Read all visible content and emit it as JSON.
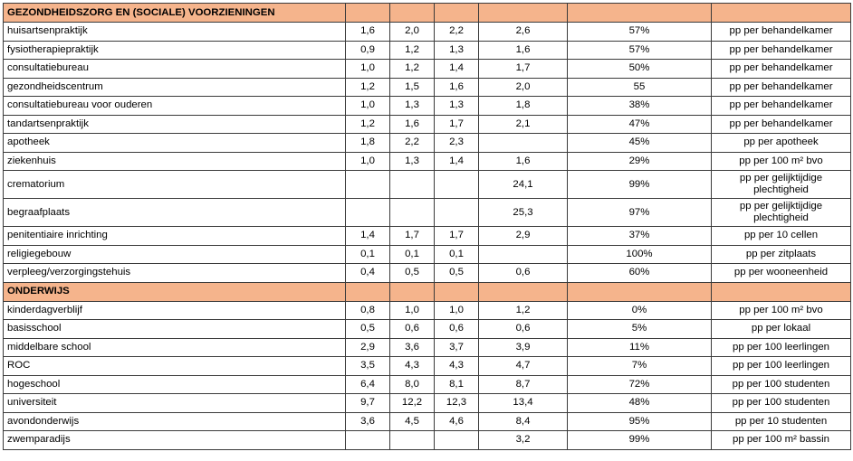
{
  "sections": [
    {
      "title": "GEZONDHEIDSZORG EN (SOCIALE) VOORZIENINGEN",
      "rows": [
        {
          "name": "huisartsenpraktijk",
          "v": [
            "1,6",
            "2,0",
            "2,2",
            "2,6"
          ],
          "pct": "57%",
          "unit": "pp per behandelkamer"
        },
        {
          "name": "fysiotherapiepraktijk",
          "v": [
            "0,9",
            "1,2",
            "1,3",
            "1,6"
          ],
          "pct": "57%",
          "unit": "pp per behandelkamer"
        },
        {
          "name": "consultatiebureau",
          "v": [
            "1,0",
            "1,2",
            "1,4",
            "1,7"
          ],
          "pct": "50%",
          "unit": "pp per behandelkamer"
        },
        {
          "name": "gezondheidscentrum",
          "v": [
            "1,2",
            "1,5",
            "1,6",
            "2,0"
          ],
          "pct": "55",
          "unit": "pp per behandelkamer"
        },
        {
          "name": "consultatiebureau voor ouderen",
          "v": [
            "1,0",
            "1,3",
            "1,3",
            "1,8"
          ],
          "pct": "38%",
          "unit": "pp per behandelkamer"
        },
        {
          "name": "tandartsenpraktijk",
          "v": [
            "1,2",
            "1,6",
            "1,7",
            "2,1"
          ],
          "pct": "47%",
          "unit": "pp per behandelkamer"
        },
        {
          "name": "apotheek",
          "v": [
            "1,8",
            "2,2",
            "2,3",
            ""
          ],
          "pct": "45%",
          "unit": "pp per apotheek"
        },
        {
          "name": "ziekenhuis",
          "v": [
            "1,0",
            "1,3",
            "1,4",
            "1,6"
          ],
          "pct": "29%",
          "unit": "pp per 100 m² bvo"
        },
        {
          "name": "crematorium",
          "v": [
            "",
            "",
            "",
            "24,1"
          ],
          "pct": "99%",
          "unit": "pp per gelijktijdige plechtigheid",
          "tall": true
        },
        {
          "name": "begraafplaats",
          "v": [
            "",
            "",
            "",
            "25,3"
          ],
          "pct": "97%",
          "unit": "pp per gelijktijdige plechtigheid",
          "tall": true
        },
        {
          "name": "penitentiaire inrichting",
          "v": [
            "1,4",
            "1,7",
            "1,7",
            "2,9"
          ],
          "pct": "37%",
          "unit": "pp per 10 cellen"
        },
        {
          "name": "religiegebouw",
          "v": [
            "0,1",
            "0,1",
            "0,1",
            ""
          ],
          "pct": "100%",
          "unit": "pp per zitplaats"
        },
        {
          "name": "verpleeg/verzorgingstehuis",
          "v": [
            "0,4",
            "0,5",
            "0,5",
            "0,6"
          ],
          "pct": "60%",
          "unit": "pp per wooneenheid"
        }
      ]
    },
    {
      "title": "ONDERWIJS",
      "rows": [
        {
          "name": "kinderdagverblijf",
          "v": [
            "0,8",
            "1,0",
            "1,0",
            "1,2"
          ],
          "pct": "0%",
          "unit": "pp per 100 m² bvo"
        },
        {
          "name": "basisschool",
          "v": [
            "0,5",
            "0,6",
            "0,6",
            "0,6"
          ],
          "pct": "5%",
          "unit": "pp per lokaal"
        },
        {
          "name": "middelbare school",
          "v": [
            "2,9",
            "3,6",
            "3,7",
            "3,9"
          ],
          "pct": "11%",
          "unit": "pp per 100 leerlingen"
        },
        {
          "name": "ROC",
          "v": [
            "3,5",
            "4,3",
            "4,3",
            "4,7"
          ],
          "pct": "7%",
          "unit": "pp per 100 leerlingen"
        },
        {
          "name": "hogeschool",
          "v": [
            "6,4",
            "8,0",
            "8,1",
            "8,7"
          ],
          "pct": "72%",
          "unit": "pp per 100 studenten"
        },
        {
          "name": "universiteit",
          "v": [
            "9,7",
            "12,2",
            "12,3",
            "13,4"
          ],
          "pct": "48%",
          "unit": "pp per 100 studenten"
        },
        {
          "name": "avondonderwijs",
          "v": [
            "3,6",
            "4,5",
            "4,6",
            "8,4"
          ],
          "pct": "95%",
          "unit": "pp per 10 studenten"
        },
        {
          "name": "zwemparadijs",
          "v": [
            "",
            "",
            "",
            "3,2"
          ],
          "pct": "99%",
          "unit": "pp per 100 m² bassin"
        }
      ]
    }
  ]
}
